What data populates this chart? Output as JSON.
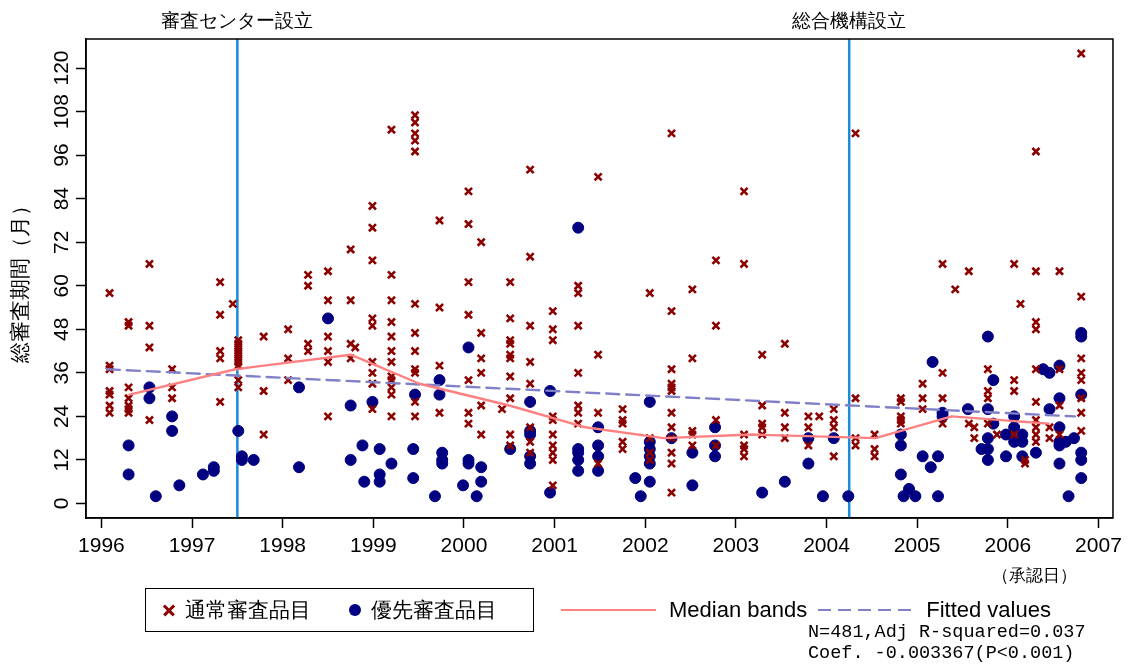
{
  "chart_data": {
    "type": "scatter",
    "ylabel": "総審査期間（月）",
    "xlabel": "（承認日）",
    "xlim": [
      1995.83,
      2007.16
    ],
    "xticks": [
      1996,
      1997,
      1998,
      1999,
      2000,
      2001,
      2002,
      2003,
      2004,
      2005,
      2006,
      2007
    ],
    "ylim": [
      -4,
      128
    ],
    "yticks": [
      0,
      12,
      24,
      36,
      48,
      60,
      72,
      84,
      96,
      108,
      120
    ],
    "grid": false,
    "legend": "bottom",
    "ref_lines": [
      {
        "axis": "x",
        "value": 1997.5,
        "label": "審査センター設立",
        "color": "#1a8cd8"
      },
      {
        "axis": "x",
        "value": 2004.25,
        "label": "総合機構設立",
        "color": "#1a8cd8"
      }
    ],
    "annotations": [
      "N=481,Adj R-squared=0.037",
      "Coef. -0.003367(P<0.001)"
    ],
    "series": [
      {
        "name": "通常審査品目",
        "marker": "cross",
        "color": "#8b0000",
        "x": [
          1996.09,
          1996.09,
          1996.09,
          1996.09,
          1996.09,
          1996.09,
          1996.09,
          1996.3,
          1996.3,
          1996.3,
          1996.3,
          1996.3,
          1996.3,
          1996.3,
          1996.53,
          1996.53,
          1996.53,
          1996.53,
          1996.78,
          1996.78,
          1996.78,
          1997.31,
          1997.31,
          1997.31,
          1997.31,
          1997.31,
          1997.45,
          1997.51,
          1997.51,
          1997.51,
          1997.51,
          1997.51,
          1997.51,
          1997.51,
          1997.51,
          1997.51,
          1997.51,
          1997.79,
          1997.79,
          1997.79,
          1998.06,
          1998.06,
          1998.06,
          1998.28,
          1998.28,
          1998.28,
          1998.28,
          1998.5,
          1998.5,
          1998.5,
          1998.5,
          1998.5,
          1998.5,
          1998.75,
          1998.75,
          1998.75,
          1998.75,
          1998.8,
          1998.99,
          1998.99,
          1998.99,
          1998.99,
          1998.99,
          1998.99,
          1998.99,
          1998.99,
          1998.99,
          1999.2,
          1999.2,
          1999.2,
          1999.2,
          1999.2,
          1999.2,
          1999.2,
          1999.2,
          1999.2,
          1999.2,
          1999.2,
          1999.2,
          1999.46,
          1999.46,
          1999.46,
          1999.46,
          1999.46,
          1999.46,
          1999.46,
          1999.46,
          1999.46,
          1999.46,
          1999.46,
          1999.46,
          1999.73,
          1999.73,
          1999.73,
          1999.73,
          2000.05,
          2000.05,
          2000.05,
          2000.05,
          2000.05,
          2000.05,
          2000.05,
          2000.19,
          2000.19,
          2000.19,
          2000.19,
          2000.19,
          2000.19,
          2000.42,
          2000.51,
          2000.51,
          2000.51,
          2000.51,
          2000.51,
          2000.51,
          2000.51,
          2000.51,
          2000.51,
          2000.51,
          2000.73,
          2000.73,
          2000.73,
          2000.73,
          2000.73,
          2000.73,
          2000.73,
          2000.73,
          2000.98,
          2000.98,
          2000.98,
          2000.98,
          2000.98,
          2000.98,
          2000.98,
          2000.98,
          2000.98,
          2000.98,
          2001.26,
          2001.26,
          2001.26,
          2001.26,
          2001.26,
          2001.26,
          2001.26,
          2001.48,
          2001.48,
          2001.48,
          2001.48,
          2001.75,
          2001.75,
          2001.75,
          2001.75,
          2001.75,
          2002.05,
          2002.05,
          2002.05,
          2002.05,
          2002.29,
          2002.29,
          2002.29,
          2002.29,
          2002.29,
          2002.29,
          2002.29,
          2002.29,
          2002.29,
          2002.29,
          2002.29,
          2002.29,
          2002.52,
          2002.52,
          2002.52,
          2002.52,
          2002.52,
          2002.78,
          2002.78,
          2002.78,
          2002.78,
          2003.09,
          2003.09,
          2003.09,
          2003.09,
          2003.09,
          2003.09,
          2003.29,
          2003.29,
          2003.29,
          2003.29,
          2003.29,
          2003.54,
          2003.54,
          2003.54,
          2003.54,
          2003.8,
          2003.8,
          2003.8,
          2003.92,
          2004.08,
          2004.08,
          2004.08,
          2004.08,
          2004.32,
          2004.32,
          2004.32,
          2004.32,
          2004.53,
          2004.53,
          2004.53,
          2004.82,
          2004.82,
          2004.82,
          2004.82,
          2004.82,
          2005.06,
          2005.06,
          2005.06,
          2005.28,
          2005.28,
          2005.28,
          2005.28,
          2005.42,
          2005.57,
          2005.57,
          2005.63,
          2005.63,
          2005.78,
          2005.78,
          2005.78,
          2005.78,
          2005.88,
          2006.07,
          2006.07,
          2006.07,
          2006.07,
          2006.14,
          2006.19,
          2006.19,
          2006.31,
          2006.31,
          2006.31,
          2006.31,
          2006.31,
          2006.31,
          2006.31,
          2006.31,
          2006.31,
          2006.31,
          2006.46,
          2006.46,
          2006.57,
          2006.57,
          2006.57,
          2006.57,
          2006.81,
          2006.81,
          2006.81,
          2006.81,
          2006.81,
          2006.81,
          2006.81,
          2006.81
        ],
        "values": [
          58,
          38,
          37,
          31,
          30,
          27,
          25,
          50,
          49,
          32,
          29,
          27,
          26,
          25,
          66,
          49,
          43,
          23,
          37,
          32,
          29,
          61,
          52,
          42,
          40,
          28,
          55,
          45,
          44,
          43,
          42,
          41,
          40,
          39,
          38,
          34,
          32,
          46,
          31,
          19,
          48,
          40,
          34,
          63,
          60,
          44,
          42,
          64,
          56,
          46,
          42,
          39,
          24,
          70,
          56,
          44,
          40,
          43,
          82,
          76,
          67,
          51,
          49,
          39,
          36,
          33,
          26,
          103,
          63,
          56,
          50,
          46,
          42,
          39,
          35,
          34,
          32,
          30,
          24,
          107,
          105,
          102,
          100,
          97,
          55,
          47,
          42,
          37,
          36,
          28,
          24,
          78,
          54,
          38,
          25,
          86,
          77,
          61,
          52,
          34,
          25,
          22,
          72,
          47,
          40,
          36,
          27,
          19,
          26,
          61,
          51,
          45,
          44,
          41,
          40,
          35,
          29,
          19,
          16,
          92,
          68,
          49,
          39,
          33,
          21,
          17,
          14,
          53,
          48,
          45,
          24,
          23,
          19,
          16,
          14,
          12,
          5,
          60,
          58,
          49,
          36,
          27,
          25,
          22,
          90,
          41,
          25,
          11,
          26,
          23,
          22,
          17,
          15,
          58,
          18,
          14,
          12,
          102,
          53,
          37,
          33,
          32,
          31,
          25,
          21,
          18,
          14,
          11,
          3,
          59,
          40,
          20,
          19,
          16,
          67,
          49,
          23,
          16,
          86,
          66,
          19,
          16,
          15,
          13,
          41,
          27,
          22,
          21,
          19,
          44,
          25,
          21,
          18,
          24,
          21,
          16,
          24,
          26,
          23,
          21,
          13,
          102,
          29,
          18,
          16,
          19,
          15,
          13,
          29,
          28,
          24,
          23,
          22,
          33,
          29,
          26,
          66,
          36,
          29,
          22,
          59,
          64,
          22,
          21,
          18,
          37,
          31,
          29,
          22,
          19,
          66,
          34,
          31,
          19,
          55,
          12,
          11,
          97,
          64,
          50,
          48,
          37,
          28,
          23,
          21,
          19,
          17,
          21,
          18,
          64,
          37,
          27,
          19,
          124,
          57,
          40,
          36,
          34,
          29,
          25,
          20
        ]
      },
      {
        "name": "優先審査品目",
        "marker": "circle",
        "color": "#000080",
        "x": [
          1996.3,
          1996.3,
          1996.53,
          1996.53,
          1996.6,
          1996.78,
          1996.78,
          1996.86,
          1997.12,
          1997.24,
          1997.24,
          1997.51,
          1997.55,
          1997.55,
          1997.68,
          1998.18,
          1998.18,
          1998.5,
          1998.75,
          1998.75,
          1998.88,
          1998.9,
          1998.99,
          1999.07,
          1999.07,
          1999.07,
          1999.2,
          1999.44,
          1999.44,
          1999.46,
          1999.68,
          1999.73,
          1999.73,
          1999.76,
          1999.76,
          1999.76,
          1999.99,
          2000.05,
          2000.05,
          2000.05,
          2000.14,
          2000.19,
          2000.19,
          2000.51,
          2000.73,
          2000.73,
          2000.73,
          2000.73,
          2000.73,
          2000.95,
          2000.95,
          2001.26,
          2001.26,
          2001.26,
          2001.26,
          2001.26,
          2001.48,
          2001.48,
          2001.48,
          2001.48,
          2001.89,
          2001.95,
          2002.05,
          2002.05,
          2002.05,
          2002.05,
          2002.05,
          2002.05,
          2002.29,
          2002.52,
          2002.52,
          2002.77,
          2002.77,
          2002.77,
          2003.29,
          2003.54,
          2003.8,
          2003.8,
          2003.96,
          2004.08,
          2004.24,
          2004.82,
          2004.82,
          2004.82,
          2004.85,
          2004.91,
          2004.98,
          2005.06,
          2005.15,
          2005.17,
          2005.23,
          2005.23,
          2005.28,
          2005.28,
          2005.56,
          2005.71,
          2005.78,
          2005.78,
          2005.78,
          2005.78,
          2005.78,
          2005.84,
          2005.84,
          2005.98,
          2005.98,
          2006.07,
          2006.07,
          2006.07,
          2006.16,
          2006.16,
          2006.16,
          2006.31,
          2006.39,
          2006.46,
          2006.46,
          2006.57,
          2006.57,
          2006.57,
          2006.57,
          2006.57,
          2006.57,
          2006.64,
          2006.67,
          2006.73,
          2006.81,
          2006.81,
          2006.81,
          2006.81,
          2006.81,
          2006.81
        ],
        "values": [
          16,
          8,
          32,
          29,
          2,
          24,
          20,
          5,
          8,
          10,
          9,
          20,
          13,
          12,
          12,
          32,
          10,
          51,
          27,
          12,
          16,
          6,
          28,
          15,
          8,
          6,
          11,
          15,
          7,
          30,
          2,
          34,
          30,
          14,
          12,
          11,
          5,
          43,
          12,
          11,
          2,
          10,
          6,
          15,
          28,
          20,
          19,
          13,
          11,
          31,
          3,
          76,
          15,
          14,
          12,
          9,
          21,
          16,
          13,
          9,
          7,
          2,
          28,
          17,
          15,
          13,
          11,
          6,
          18,
          14,
          5,
          21,
          16,
          13,
          3,
          6,
          18,
          11,
          2,
          18,
          2,
          19,
          16,
          8,
          2,
          4,
          2,
          13,
          10,
          39,
          13,
          2,
          25,
          24,
          26,
          15,
          46,
          26,
          18,
          15,
          12,
          34,
          22,
          19,
          13,
          24,
          21,
          17,
          19,
          17,
          13,
          14,
          37,
          36,
          26,
          38,
          29,
          21,
          17,
          16,
          11,
          17,
          2,
          18,
          47,
          46,
          30,
          14,
          12,
          7
        ]
      },
      {
        "name": "Median bands",
        "type": "line",
        "marker": "none",
        "line_style": "solid",
        "color": "#ff8080",
        "x": [
          1996.31,
          1997.48,
          1998.75,
          1999.51,
          2000.5,
          2001.34,
          2002.2,
          2003.18,
          2004.54,
          2005.38,
          2006.45
        ],
        "values": [
          30,
          37,
          41,
          33,
          27,
          21,
          18,
          19,
          18,
          24,
          22
        ]
      },
      {
        "name": "Fitted values",
        "type": "line",
        "marker": "none",
        "line_style": "dashed",
        "color": "#8080c8",
        "x": [
          1996.06,
          2006.74
        ],
        "values": [
          37,
          24
        ]
      }
    ]
  }
}
